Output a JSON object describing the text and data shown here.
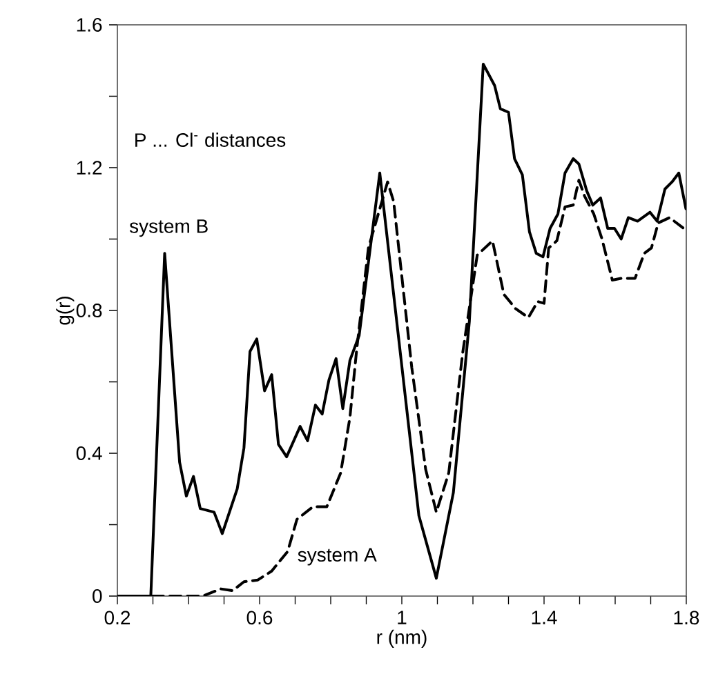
{
  "chart_data": {
    "type": "line",
    "xlabel": "r (nm)",
    "ylabel": "g(r)",
    "annotations": [
      "P ... Cl$^{-}$ distances"
    ],
    "xlim": [
      0.2,
      1.8
    ],
    "ylim": [
      0,
      1.6
    ],
    "xticks": [
      0.2,
      {
        "value": 0.3,
        "label": null
      },
      {
        "value": 0.4,
        "label": null
      },
      {
        "value": 0.5,
        "label": null
      },
      0.6,
      {
        "value": 0.7,
        "label": null
      },
      {
        "value": 0.8,
        "label": null
      },
      {
        "value": 0.9,
        "label": null
      },
      1,
      {
        "value": 1.1,
        "label": null
      },
      {
        "value": 1.2,
        "label": null
      },
      {
        "value": 1.3,
        "label": null
      },
      1.4,
      {
        "value": 1.5,
        "label": null
      },
      {
        "value": 1.6,
        "label": null
      },
      {
        "value": 1.7,
        "label": null
      },
      1.8
    ],
    "yticks": [
      0,
      {
        "value": 0.2,
        "label": null
      },
      0.4,
      {
        "value": 0.6,
        "label": null
      },
      0.8,
      {
        "value": 1.0,
        "label": null
      },
      1.2,
      {
        "value": 1.4,
        "label": null
      },
      1.6
    ],
    "grid": false,
    "legend": false,
    "marker": "none",
    "series": [
      {
        "name": "system B",
        "color": "#000000",
        "line_style": "solid",
        "x": [
          0.2,
          0.294,
          0.333,
          0.375,
          0.394,
          0.414,
          0.433,
          0.472,
          0.495,
          0.537,
          0.556,
          0.573,
          0.592,
          0.614,
          0.634,
          0.653,
          0.676,
          0.714,
          0.735,
          0.757,
          0.776,
          0.795,
          0.815,
          0.834,
          0.854,
          0.88,
          0.938,
          1.048,
          1.097,
          1.145,
          1.19,
          1.229,
          1.261,
          1.277,
          1.3,
          1.317,
          1.339,
          1.359,
          1.378,
          1.397,
          1.417,
          1.439,
          1.459,
          1.482,
          1.498,
          1.52,
          1.537,
          1.559,
          1.579,
          1.598,
          1.617,
          1.637,
          1.663,
          1.698,
          1.718,
          1.74,
          1.76,
          1.779,
          1.799
        ],
        "values": [
          0,
          0,
          0.96,
          0.375,
          0.28,
          0.335,
          0.245,
          0.235,
          0.175,
          0.3,
          0.415,
          0.685,
          0.72,
          0.575,
          0.62,
          0.425,
          0.39,
          0.475,
          0.435,
          0.535,
          0.51,
          0.605,
          0.665,
          0.525,
          0.66,
          0.73,
          1.185,
          0.225,
          0.05,
          0.29,
          0.77,
          1.49,
          1.43,
          1.365,
          1.355,
          1.225,
          1.18,
          1.02,
          0.96,
          0.95,
          1.03,
          1.07,
          1.185,
          1.225,
          1.21,
          1.135,
          1.095,
          1.115,
          1.03,
          1.03,
          1.0,
          1.06,
          1.05,
          1.075,
          1.05,
          1.14,
          1.16,
          1.185,
          1.085
        ]
      },
      {
        "name": "system A",
        "color": "#000000",
        "line_style": "dashed",
        "x": [
          0.2,
          0.44,
          0.491,
          0.524,
          0.556,
          0.595,
          0.634,
          0.679,
          0.705,
          0.75,
          0.789,
          0.828,
          0.854,
          0.873,
          0.906,
          0.96,
          0.977,
          1.028,
          1.067,
          1.097,
          1.132,
          1.171,
          1.212,
          1.255,
          1.287,
          1.32,
          1.356,
          1.382,
          1.4,
          1.413,
          1.436,
          1.459,
          1.482,
          1.498,
          1.514,
          1.54,
          1.563,
          1.592,
          1.617,
          1.656,
          1.682,
          1.702,
          1.721,
          1.753,
          1.799
        ],
        "values": [
          0,
          0,
          0.02,
          0.015,
          0.04,
          0.045,
          0.07,
          0.125,
          0.215,
          0.25,
          0.25,
          0.345,
          0.5,
          0.69,
          0.975,
          1.16,
          1.105,
          0.64,
          0.355,
          0.235,
          0.345,
          0.68,
          0.955,
          0.995,
          0.845,
          0.805,
          0.78,
          0.825,
          0.82,
          0.975,
          0.995,
          1.09,
          1.095,
          1.165,
          1.12,
          1.07,
          1.0,
          0.885,
          0.89,
          0.89,
          0.96,
          0.975,
          1.045,
          1.06,
          1.025
        ]
      }
    ]
  }
}
